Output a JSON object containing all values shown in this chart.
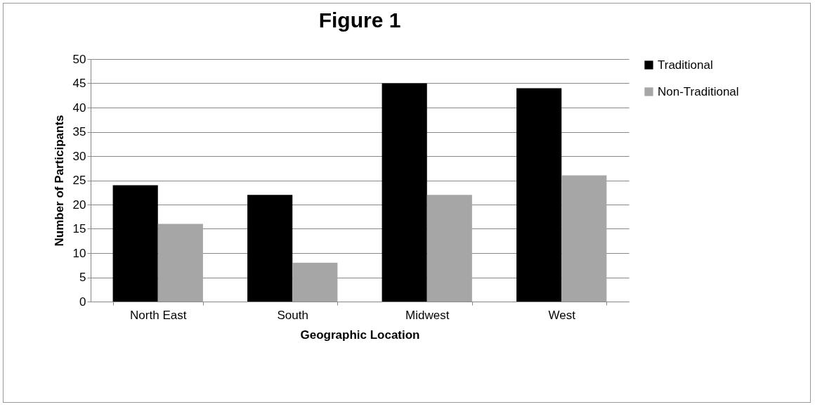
{
  "chart_data": {
    "type": "bar",
    "title": "Figure 1",
    "xlabel": "Geographic Location",
    "ylabel": "Number of Participants",
    "categories": [
      "North East",
      "South",
      "Midwest",
      "West"
    ],
    "series": [
      {
        "name": "Traditional",
        "color": "#000000",
        "values": [
          24,
          22,
          45,
          44
        ]
      },
      {
        "name": "Non-Traditional",
        "color": "#a6a6a6",
        "values": [
          16,
          8,
          22,
          26
        ]
      }
    ],
    "ylim": [
      0,
      50
    ],
    "yticks": [
      0,
      5,
      10,
      15,
      20,
      25,
      30,
      35,
      40,
      45,
      50
    ],
    "grid": "y",
    "legend": "right"
  }
}
